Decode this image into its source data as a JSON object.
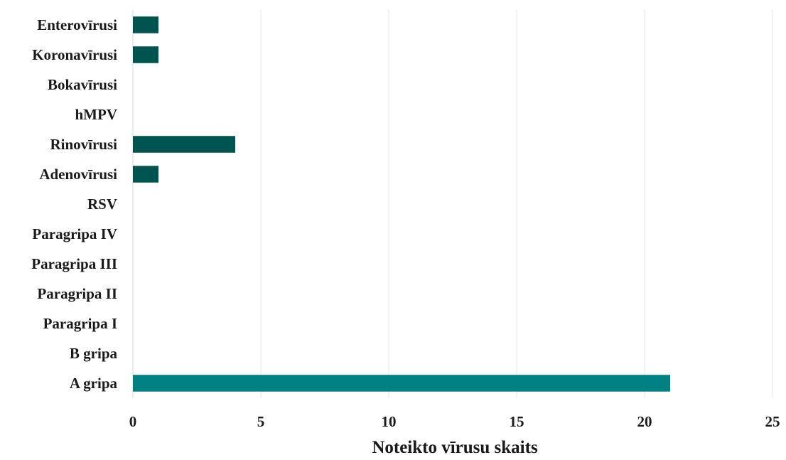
{
  "chart_data": {
    "type": "bar",
    "orientation": "horizontal",
    "categories": [
      "Enterovīrusi",
      "Koronavīrusi",
      "Bokavīrusi",
      "hMPV",
      "Rinovīrusi",
      "Adenovīrusi",
      "RSV",
      "Paragripa IV",
      "Paragripa III",
      "Paragripa II",
      "Paragripa I",
      "B gripa",
      "A gripa"
    ],
    "values": [
      1,
      1,
      0,
      0,
      4,
      1,
      0,
      0,
      0,
      0,
      0,
      0,
      21
    ],
    "bar_colors": [
      "#00544f",
      "#00544f",
      "#00544f",
      "#00544f",
      "#00544f",
      "#00544f",
      "#00544f",
      "#00544f",
      "#00544f",
      "#00544f",
      "#00544f",
      "#00544f",
      "#008080"
    ],
    "xlabel": "Noteikto vīrusu skaits",
    "xlim": [
      0,
      25
    ],
    "xticks": [
      0,
      5,
      10,
      15,
      20,
      25
    ],
    "grid": "vertical",
    "legend": "none"
  }
}
